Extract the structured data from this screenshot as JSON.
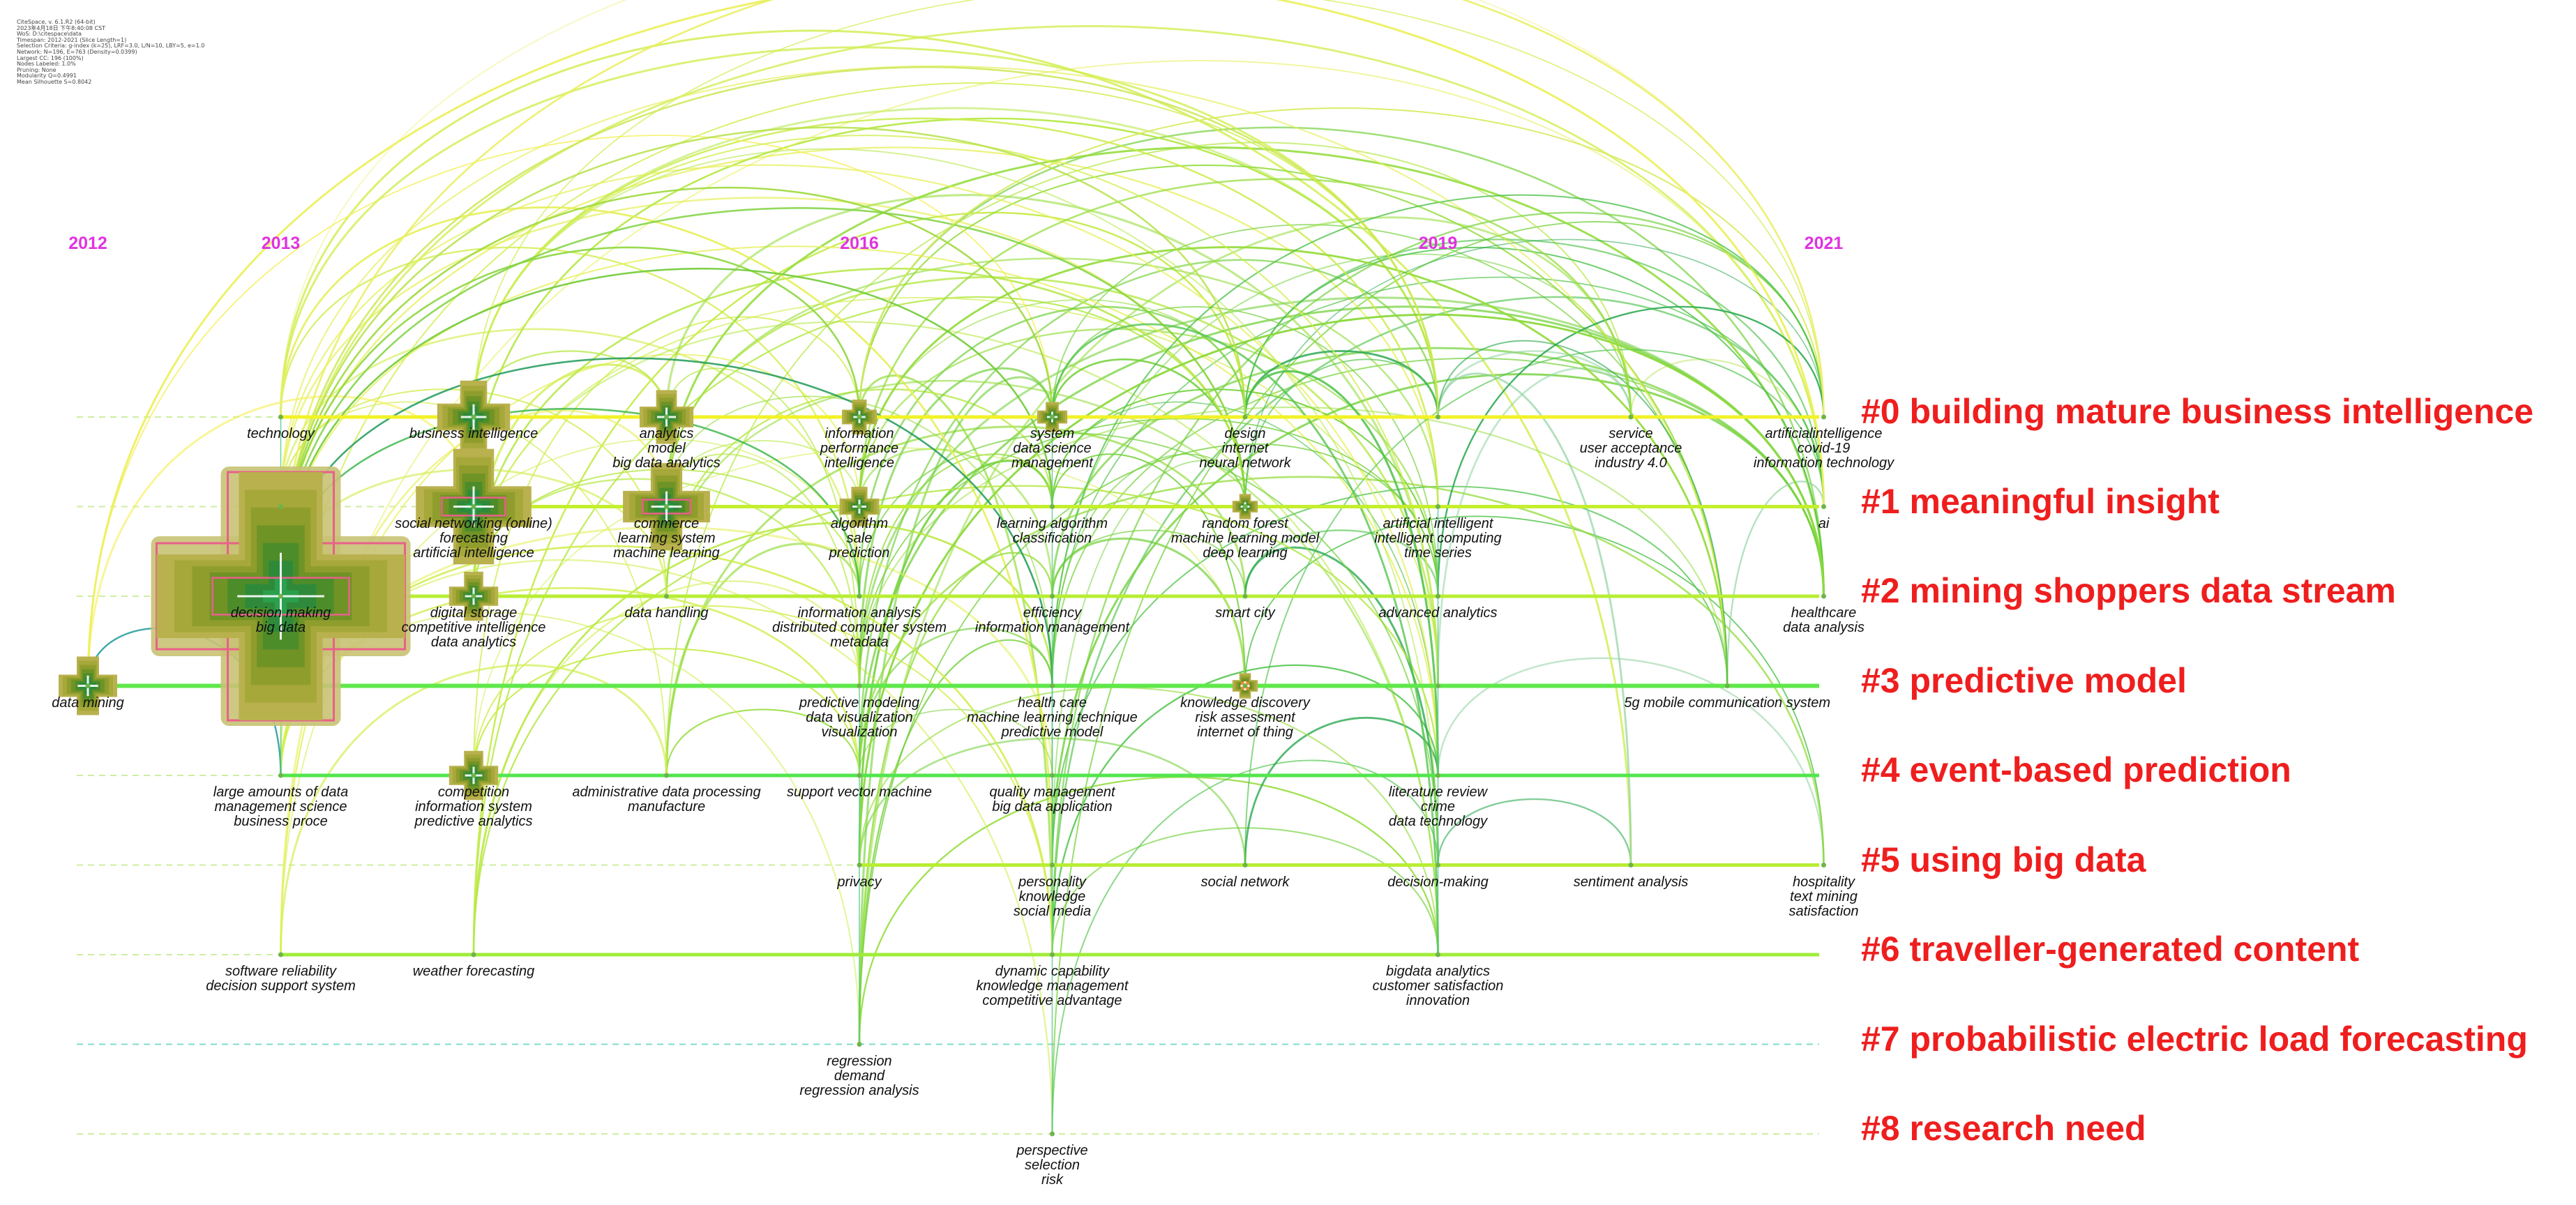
{
  "info_block": [
    "CiteSpace, v. 6.1.R2 (64-bit)",
    "2023年4月18日 下午8:40:08 CST",
    "WoS: D:\\citespace\\data",
    "Timespan: 2012-2021 (Slice Length=1)",
    "Selection Criteria: g-index (k=25), LRF=3.0, L/N=10, LBY=5, e=1.0",
    "Network: N=196, E=763 (Density=0.0399)",
    "Largest CC: 196 (100%)",
    "Nodes Labeled: 1.0%",
    "Pruning: None",
    "Modularity Q=0.4991",
    "Mean Silhouette S=0.8042"
  ],
  "colors": {
    "year_label": "#e033e0",
    "cluster_label": "#ef1e1e"
  },
  "axis": {
    "years": [
      "2012",
      "2013",
      "2016",
      "2019",
      "2021"
    ]
  },
  "clusters": [
    "#0 building mature business intelligence",
    "#1 meaningful insight",
    "#2 mining shoppers data stream",
    "#3 predictive model",
    "#4 event-based prediction",
    "#5 using big data",
    "#6 traveller-generated content",
    "#7 probabilistic electric load forecasting",
    "#8 research need"
  ],
  "keyword_labels": [
    {
      "year": 2013,
      "cluster": 0,
      "text": "technology"
    },
    {
      "year": 2014,
      "cluster": 0,
      "text": "business intelligence"
    },
    {
      "year": 2015,
      "cluster": 0,
      "text": "analytics\nmodel\nbig data analytics"
    },
    {
      "year": 2016,
      "cluster": 0,
      "text": "information\nperformance\nintelligence"
    },
    {
      "year": 2017,
      "cluster": 0,
      "text": "system\ndata science\nmanagement"
    },
    {
      "year": 2018,
      "cluster": 0,
      "text": "design\ninternet\nneural network"
    },
    {
      "year": 2020,
      "cluster": 0,
      "text": "service\nuser acceptance\nindustry 4.0"
    },
    {
      "year": 2021,
      "cluster": 0,
      "text": "artificialintelligence\ncovid-19\ninformation technology"
    },
    {
      "year": 2014,
      "cluster": 1,
      "text": "social networking (online)\nforecasting\nartificial intelligence"
    },
    {
      "year": 2015,
      "cluster": 1,
      "text": "commerce\nlearning system\nmachine learning"
    },
    {
      "year": 2016,
      "cluster": 1,
      "text": "algorithm\nsale\nprediction"
    },
    {
      "year": 2017,
      "cluster": 1,
      "text": "learning algorithm\nclassification"
    },
    {
      "year": 2018,
      "cluster": 1,
      "text": "random forest\nmachine learning model\ndeep learning"
    },
    {
      "year": 2019,
      "cluster": 1,
      "text": "artificial intelligent\nintelligent computing\ntime series"
    },
    {
      "year": 2021,
      "cluster": 1,
      "text": "ai"
    },
    {
      "year": 2013,
      "cluster": 2,
      "text": "decision making\nbig data"
    },
    {
      "year": 2014,
      "cluster": 2,
      "text": "digital storage\ncompetitive intelligence\ndata analytics"
    },
    {
      "year": 2015,
      "cluster": 2,
      "text": "data handling"
    },
    {
      "year": 2016,
      "cluster": 2,
      "text": "information analysis\ndistributed computer system\nmetadata"
    },
    {
      "year": 2017,
      "cluster": 2,
      "text": "efficiency\ninformation management"
    },
    {
      "year": 2018,
      "cluster": 2,
      "text": "smart city"
    },
    {
      "year": 2019,
      "cluster": 2,
      "text": "advanced analytics"
    },
    {
      "year": 2021,
      "cluster": 2,
      "text": "healthcare\ndata analysis"
    },
    {
      "year": 2012,
      "cluster": 3,
      "text": "data mining"
    },
    {
      "year": 2016,
      "cluster": 3,
      "text": "predictive modeling\ndata visualization\nvisualization"
    },
    {
      "year": 2017,
      "cluster": 3,
      "text": "health care\nmachine learning technique\npredictive model"
    },
    {
      "year": 2018,
      "cluster": 3,
      "text": "knowledge discovery\nrisk assessment\ninternet of thing"
    },
    {
      "year": 2020.5,
      "cluster": 3,
      "text": "5g mobile communication system"
    },
    {
      "year": 2013,
      "cluster": 4,
      "text": "large amounts of data\nmanagement science\nbusiness proce"
    },
    {
      "year": 2014,
      "cluster": 4,
      "text": "competition\ninformation system\npredictive analytics"
    },
    {
      "year": 2015,
      "cluster": 4,
      "text": "administrative data processing\nmanufacture"
    },
    {
      "year": 2016,
      "cluster": 4,
      "text": "support vector machine"
    },
    {
      "year": 2017,
      "cluster": 4,
      "text": "quality management\nbig data application"
    },
    {
      "year": 2019,
      "cluster": 4,
      "text": "literature review\ncrime\ndata technology"
    },
    {
      "year": 2016,
      "cluster": 5,
      "text": "privacy"
    },
    {
      "year": 2017,
      "cluster": 5,
      "text": "personality\nknowledge\nsocial media"
    },
    {
      "year": 2018,
      "cluster": 5,
      "text": "social network"
    },
    {
      "year": 2019,
      "cluster": 5,
      "text": "decision-making"
    },
    {
      "year": 2020,
      "cluster": 5,
      "text": "sentiment analysis"
    },
    {
      "year": 2021,
      "cluster": 5,
      "text": "hospitality\ntext mining\nsatisfaction"
    },
    {
      "year": 2013,
      "cluster": 6,
      "text": "software reliability\ndecision support system"
    },
    {
      "year": 2014,
      "cluster": 6,
      "text": "weather forecasting"
    },
    {
      "year": 2017,
      "cluster": 6,
      "text": "dynamic capability\nknowledge management\ncompetitive advantage"
    },
    {
      "year": 2019,
      "cluster": 6,
      "text": "bigdata analytics\ncustomer satisfaction\ninnovation"
    },
    {
      "year": 2016,
      "cluster": 7,
      "text": "regression\ndemand\nregression analysis"
    },
    {
      "year": 2017,
      "cluster": 8,
      "text": "perspective\nselection\nrisk"
    }
  ],
  "nodes": [
    {
      "year": 2012,
      "cluster": 3,
      "size": 1.0
    },
    {
      "year": 2013,
      "cluster": 2,
      "size": 5.0
    },
    {
      "year": 2014,
      "cluster": 0,
      "size": 1.3
    },
    {
      "year": 2014,
      "cluster": 1,
      "size": 2.2
    },
    {
      "year": 2014,
      "cluster": 2,
      "size": 0.8
    },
    {
      "year": 2014,
      "cluster": 4,
      "size": 0.8
    },
    {
      "year": 2015,
      "cluster": 0,
      "size": 0.9
    },
    {
      "year": 2015,
      "cluster": 1,
      "size": 1.6
    },
    {
      "year": 2016,
      "cluster": 0,
      "size": 0.5
    },
    {
      "year": 2016,
      "cluster": 1,
      "size": 0.6
    },
    {
      "year": 2017,
      "cluster": 0,
      "size": 0.4
    },
    {
      "year": 2018,
      "cluster": 1,
      "size": 0.3
    },
    {
      "year": 2018,
      "cluster": 3,
      "size": 0.3
    }
  ]
}
